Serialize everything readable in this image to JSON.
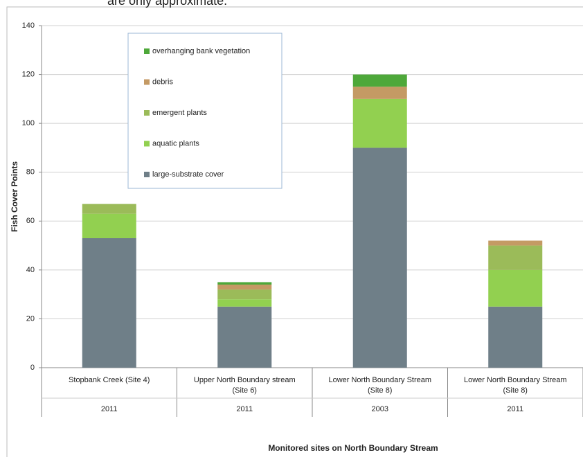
{
  "chart_data": {
    "type": "stacked-bar",
    "caption": "are only approximate.",
    "y_label": "Fish Cover Points",
    "x_label": "Monitored sites on North Boundary Stream",
    "categories": [
      "Stopbank Creek  (Site 4)",
      "Upper North Boundary stream (Site 6)",
      "Lower North Boundary Stream (Site 8)",
      "Lower North Boundary Stream (Site 8)"
    ],
    "category_years": [
      "2011",
      "2011",
      "2003",
      "2011"
    ],
    "series": [
      {
        "name": "large-substrate cover",
        "color": "#6f7f88",
        "values": [
          53,
          25,
          90,
          25
        ]
      },
      {
        "name": "aquatic plants",
        "color": "#92d050",
        "values": [
          10,
          3,
          20,
          15
        ]
      },
      {
        "name": "emergent plants",
        "color": "#9bbb59",
        "values": [
          4,
          4,
          0,
          10
        ]
      },
      {
        "name": "debris",
        "color": "#c49a64",
        "values": [
          0,
          2,
          5,
          2
        ]
      },
      {
        "name": "overhanging bank vegetation",
        "color": "#4ea83a",
        "values": [
          0,
          1,
          5,
          0
        ]
      }
    ],
    "ylim": [
      0,
      140
    ],
    "yticks": [
      0,
      20,
      40,
      60,
      80,
      100,
      120,
      140
    ],
    "grid": true
  }
}
